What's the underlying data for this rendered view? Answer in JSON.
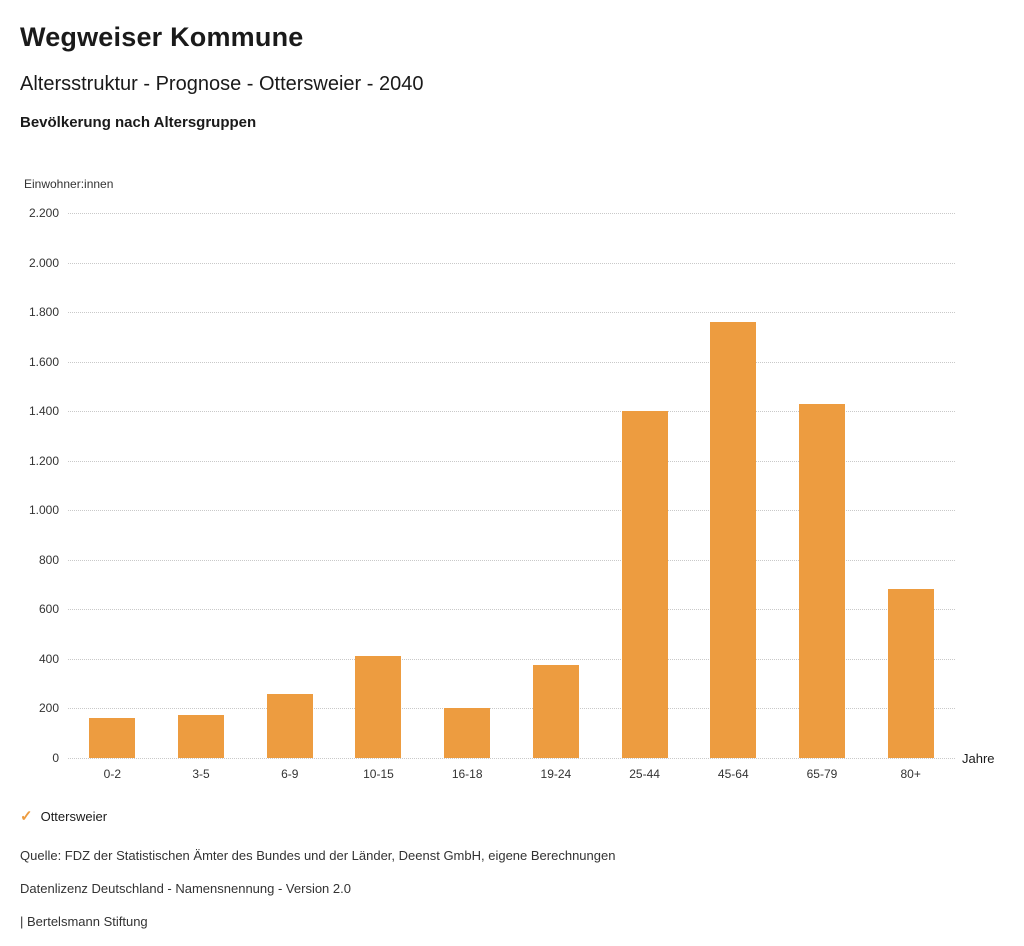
{
  "header": {
    "title": "Wegweiser Kommune",
    "subtitle": "Altersstruktur - Prognose - Ottersweier - 2040",
    "chart_heading": "Bevölkerung nach Altersgruppen"
  },
  "chart_data": {
    "type": "bar",
    "title": "Bevölkerung nach Altersgruppen",
    "unit_label": "Einwohner:innen",
    "xlabel": "Jahre",
    "ylabel": "Einwohner:innen",
    "categories": [
      "0-2",
      "3-5",
      "6-9",
      "10-15",
      "16-18",
      "19-24",
      "25-44",
      "45-64",
      "65-79",
      "80+"
    ],
    "series": [
      {
        "name": "Ottersweier",
        "color": "#ED9C40",
        "values": [
          160,
          175,
          260,
          412,
          201,
          375,
          1400,
          1760,
          1430,
          684
        ]
      }
    ],
    "ylim": [
      0,
      2200
    ],
    "ytick_step": 200,
    "grid": true,
    "gridline_color": "#c9c9c9",
    "legend_position": "bottom"
  },
  "icons": {
    "legend_check": "✓"
  },
  "footer": {
    "source": "Quelle: FDZ der Statistischen Ämter des Bundes und der Länder, Deenst GmbH, eigene Berechnungen",
    "license": "Datenlizenz Deutschland - Namensnennung - Version 2.0",
    "attribution": "| Bertelsmann Stiftung"
  }
}
